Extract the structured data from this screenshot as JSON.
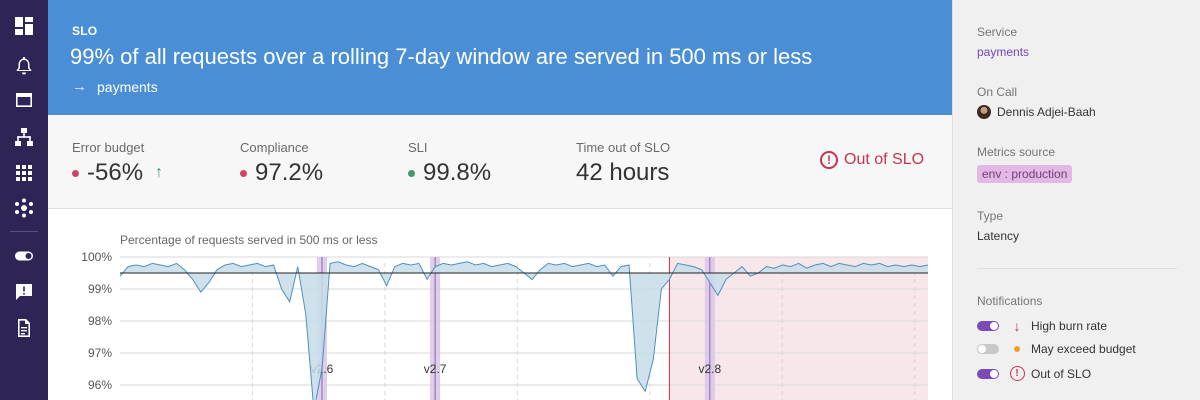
{
  "header": {
    "kicker": "SLO",
    "title": "99% of all requests over a rolling 7-day window are served in 500 ms or less",
    "service": "payments"
  },
  "stats": [
    {
      "label": "Error budget",
      "value": "-56%",
      "dot_color": "#d2416b",
      "trend": "up"
    },
    {
      "label": "Compliance",
      "value": "97.2%",
      "dot_color": "#d2416b"
    },
    {
      "label": "SLI",
      "value": "99.8%",
      "dot_color": "#3d9a6d"
    },
    {
      "label": "Time out of SLO",
      "value": "42 hours"
    }
  ],
  "status_badge": {
    "icon": "!",
    "label": "Out of SLO",
    "color": "#c8344f"
  },
  "chart_data": {
    "type": "area",
    "title": "Percentage of requests served in 500 ms or less",
    "y_tick_labels": [
      "100%",
      "99%",
      "98%",
      "97%",
      "96%"
    ],
    "ylim": [
      95.5,
      100
    ],
    "threshold": 99.5,
    "x": [
      0,
      1,
      2,
      3,
      4,
      5,
      6,
      7,
      8,
      9,
      10,
      11,
      12,
      13,
      14,
      15,
      16,
      17,
      18,
      19,
      20,
      21,
      22,
      23,
      24,
      25,
      26,
      27,
      28,
      29,
      30,
      31,
      32,
      33,
      34,
      35,
      36,
      37,
      38,
      39,
      40,
      41,
      42,
      43,
      44,
      45,
      46,
      47,
      48,
      49,
      50,
      51,
      52,
      53,
      54,
      55,
      56,
      57,
      58,
      59,
      60,
      61,
      62,
      63,
      64,
      65,
      66,
      67,
      68,
      69,
      70,
      71,
      72,
      73,
      74,
      75,
      76,
      77,
      78,
      79,
      80,
      81,
      82,
      83,
      84,
      85,
      86,
      87,
      88,
      89,
      90,
      91,
      92,
      93,
      94,
      95,
      96,
      97,
      98,
      99,
      100
    ],
    "series": [
      {
        "values": [
          99.4,
          99.7,
          99.75,
          99.7,
          99.8,
          99.75,
          99.7,
          99.8,
          99.6,
          99.3,
          98.9,
          99.2,
          99.6,
          99.75,
          99.8,
          99.7,
          99.75,
          99.8,
          99.7,
          99.75,
          99.0,
          98.6,
          99.7,
          98.2,
          95.2,
          96.5,
          99.8,
          99.85,
          99.75,
          99.7,
          99.8,
          99.7,
          99.6,
          99.1,
          99.7,
          99.8,
          99.75,
          99.8,
          99.3,
          99.7,
          99.8,
          99.75,
          99.8,
          99.85,
          99.75,
          99.8,
          99.7,
          99.75,
          99.8,
          99.7,
          99.5,
          99.3,
          99.6,
          99.8,
          99.75,
          99.8,
          99.7,
          99.75,
          99.8,
          99.7,
          99.75,
          99.4,
          99.7,
          99.75,
          96.2,
          95.8,
          96.8,
          99.0,
          99.3,
          99.8,
          99.75,
          99.7,
          99.6,
          99.2,
          98.8,
          99.3,
          99.5,
          99.7,
          99.4,
          99.5,
          99.7,
          99.65,
          99.75,
          99.7,
          99.8,
          99.65,
          99.75,
          99.8,
          99.7,
          99.8,
          99.75,
          99.7,
          99.8,
          99.75,
          99.8,
          99.7,
          99.75,
          99.7,
          99.75,
          99.7,
          99.75
        ]
      }
    ],
    "deployments": [
      {
        "label": "v2.6",
        "at": 25
      },
      {
        "label": "v2.7",
        "at": 39
      },
      {
        "label": "v2.8",
        "at": 73
      }
    ],
    "out_of_slo_from": 68,
    "grid": true
  },
  "panel": {
    "service_label": "Service",
    "service_value": "payments",
    "oncall_label": "On Call",
    "oncall_value": "Dennis Adjei-Baah",
    "metrics_label": "Metrics source",
    "metrics_chip": "env : production",
    "type_label": "Type",
    "type_value": "Latency",
    "notifications_label": "Notifications",
    "notifications": [
      {
        "label": "High burn rate",
        "enabled": true,
        "icon": "arrow-down-icon"
      },
      {
        "label": "May exceed budget",
        "enabled": false,
        "icon": "dot-icon"
      },
      {
        "label": "Out of SLO",
        "enabled": true,
        "icon": "alert-circle-icon"
      }
    ]
  },
  "nav": [
    "dashboard-icon",
    "bell-icon",
    "window-icon",
    "hierarchy-icon",
    "apps-grid-icon",
    "network-icon",
    "toggle-icon",
    "feedback-icon",
    "document-icon"
  ]
}
